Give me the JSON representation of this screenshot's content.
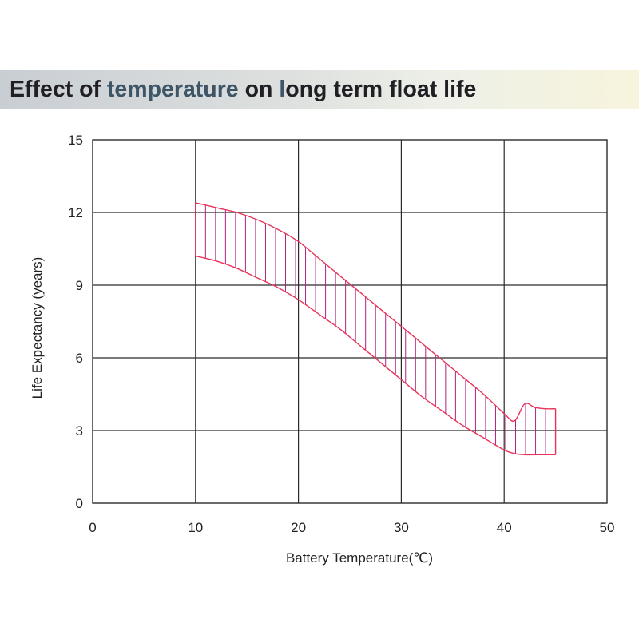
{
  "header": {
    "title_part1": "Effect of ",
    "title_part2": "temperature",
    "title_part3": " on ",
    "title_part4": "l",
    "title_part5": "ong term float life"
  },
  "colors": {
    "band_line": "#e8335a",
    "hatch": "#b0247a",
    "grid": "#2a2a2a"
  },
  "chart_data": {
    "type": "area",
    "title": "Effect of temperature on long term float life",
    "xlabel": "Battery Temperature(℃)",
    "ylabel": "Life Expectancy (years)",
    "xlim": [
      0,
      50
    ],
    "ylim": [
      0,
      15
    ],
    "xticks": [
      0,
      10,
      20,
      30,
      40,
      50
    ],
    "yticks": [
      0,
      3,
      6,
      9,
      12,
      15
    ],
    "grid": true,
    "series": [
      {
        "name": "upper",
        "x": [
          10,
          12,
          14,
          16,
          18,
          20,
          22,
          24,
          26,
          28,
          30,
          32,
          34,
          36,
          38,
          40,
          41,
          42,
          43,
          44,
          45
        ],
        "y": [
          12.4,
          12.2,
          12.0,
          11.7,
          11.3,
          10.8,
          10.1,
          9.4,
          8.7,
          8.0,
          7.3,
          6.6,
          5.9,
          5.2,
          4.5,
          3.7,
          3.4,
          4.1,
          3.95,
          3.9,
          3.9
        ]
      },
      {
        "name": "lower",
        "x": [
          10,
          12,
          14,
          16,
          18,
          20,
          22,
          24,
          26,
          28,
          30,
          32,
          34,
          36,
          38,
          40,
          41,
          42,
          43,
          44,
          45
        ],
        "y": [
          10.2,
          10.0,
          9.7,
          9.3,
          8.9,
          8.4,
          7.8,
          7.2,
          6.5,
          5.8,
          5.1,
          4.4,
          3.8,
          3.2,
          2.7,
          2.2,
          2.05,
          2.0,
          2.0,
          2.0,
          2.0
        ]
      }
    ]
  }
}
